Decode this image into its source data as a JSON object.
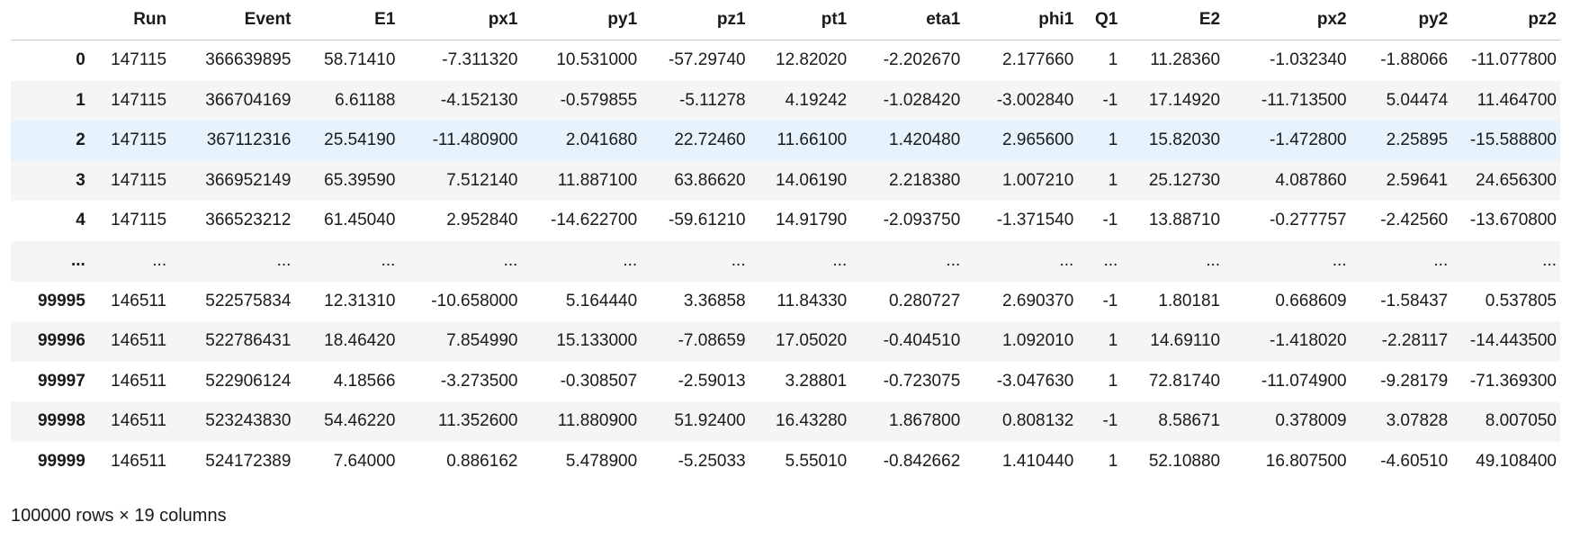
{
  "table": {
    "index_header": "",
    "columns": [
      "Run",
      "Event",
      "E1",
      "px1",
      "py1",
      "pz1",
      "pt1",
      "eta1",
      "phi1",
      "Q1",
      "E2",
      "px2",
      "py2",
      "pz2"
    ],
    "rows": [
      {
        "index": "0",
        "cells": [
          "147115",
          "366639895",
          "58.71410",
          "-7.311320",
          "10.531000",
          "-57.29740",
          "12.82020",
          "-2.202670",
          "2.177660",
          "1",
          "11.28360",
          "-1.032340",
          "-1.88066",
          "-11.077800"
        ]
      },
      {
        "index": "1",
        "cells": [
          "147115",
          "366704169",
          "6.61188",
          "-4.152130",
          "-0.579855",
          "-5.11278",
          "4.19242",
          "-1.028420",
          "-3.002840",
          "-1",
          "17.14920",
          "-11.713500",
          "5.04474",
          "11.464700"
        ]
      },
      {
        "index": "2",
        "cells": [
          "147115",
          "367112316",
          "25.54190",
          "-11.480900",
          "2.041680",
          "22.72460",
          "11.66100",
          "1.420480",
          "2.965600",
          "1",
          "15.82030",
          "-1.472800",
          "2.25895",
          "-15.588800"
        ]
      },
      {
        "index": "3",
        "cells": [
          "147115",
          "366952149",
          "65.39590",
          "7.512140",
          "11.887100",
          "63.86620",
          "14.06190",
          "2.218380",
          "1.007210",
          "1",
          "25.12730",
          "4.087860",
          "2.59641",
          "24.656300"
        ]
      },
      {
        "index": "4",
        "cells": [
          "147115",
          "366523212",
          "61.45040",
          "2.952840",
          "-14.622700",
          "-59.61210",
          "14.91790",
          "-2.093750",
          "-1.371540",
          "-1",
          "13.88710",
          "-0.277757",
          "-2.42560",
          "-13.670800"
        ]
      },
      {
        "index": "...",
        "cells": [
          "...",
          "...",
          "...",
          "...",
          "...",
          "...",
          "...",
          "...",
          "...",
          "...",
          "...",
          "...",
          "...",
          "..."
        ]
      },
      {
        "index": "99995",
        "cells": [
          "146511",
          "522575834",
          "12.31310",
          "-10.658000",
          "5.164440",
          "3.36858",
          "11.84330",
          "0.280727",
          "2.690370",
          "-1",
          "1.80181",
          "0.668609",
          "-1.58437",
          "0.537805"
        ]
      },
      {
        "index": "99996",
        "cells": [
          "146511",
          "522786431",
          "18.46420",
          "7.854990",
          "15.133000",
          "-7.08659",
          "17.05020",
          "-0.404510",
          "1.092010",
          "1",
          "14.69110",
          "-1.418020",
          "-2.28117",
          "-14.443500"
        ]
      },
      {
        "index": "99997",
        "cells": [
          "146511",
          "522906124",
          "4.18566",
          "-3.273500",
          "-0.308507",
          "-2.59013",
          "3.28801",
          "-0.723075",
          "-3.047630",
          "1",
          "72.81740",
          "-11.074900",
          "-9.28179",
          "-71.369300"
        ]
      },
      {
        "index": "99998",
        "cells": [
          "146511",
          "523243830",
          "54.46220",
          "11.352600",
          "11.880900",
          "51.92400",
          "16.43280",
          "1.867800",
          "0.808132",
          "-1",
          "8.58671",
          "0.378009",
          "3.07828",
          "8.007050"
        ]
      },
      {
        "index": "99999",
        "cells": [
          "146511",
          "524172389",
          "7.64000",
          "0.886162",
          "5.478900",
          "-5.25033",
          "5.55010",
          "-0.842662",
          "1.410440",
          "1",
          "52.10880",
          "16.807500",
          "-4.60510",
          "49.108400"
        ]
      }
    ],
    "highlighted_row": 2
  },
  "footer": {
    "shape_text": "100000 rows × 19 columns"
  }
}
